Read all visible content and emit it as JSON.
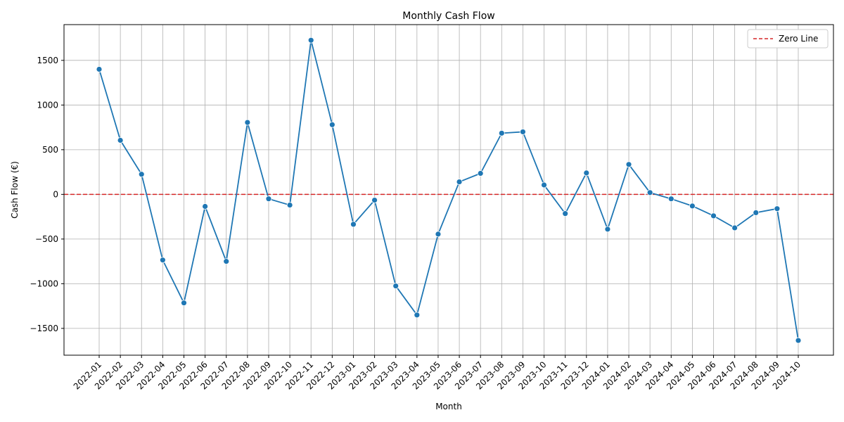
{
  "chart_data": {
    "type": "line",
    "title": "Monthly Cash Flow",
    "xlabel": "Month",
    "ylabel": "Cash Flow (€)",
    "ylim": [
      -1800,
      1900
    ],
    "yticks": [
      -1500,
      -1000,
      -500,
      0,
      500,
      1000,
      1500
    ],
    "ytick_labels": [
      "−1500",
      "−1000",
      "−500",
      "0",
      "500",
      "1000",
      "1500"
    ],
    "grid": true,
    "legend_position": "top-right",
    "categories": [
      "2022-01",
      "2022-02",
      "2022-03",
      "2022-04",
      "2022-05",
      "2022-06",
      "2022-07",
      "2022-08",
      "2022-09",
      "2022-10",
      "2022-11",
      "2022-12",
      "2023-01",
      "2023-02",
      "2023-03",
      "2023-04",
      "2023-05",
      "2023-06",
      "2023-07",
      "2023-08",
      "2023-09",
      "2023-10",
      "2023-11",
      "2023-12",
      "2024-01",
      "2024-02",
      "2024-03",
      "2024-04",
      "2024-05",
      "2024-06",
      "2024-07",
      "2024-08",
      "2024-09",
      "2024-10"
    ],
    "series": [
      {
        "color": "#1f77b4",
        "values": [
          1400,
          605,
          225,
          -735,
          -1215,
          -135,
          -750,
          805,
          -50,
          -120,
          1725,
          780,
          -335,
          -65,
          -1025,
          -1350,
          -445,
          140,
          235,
          685,
          700,
          105,
          -215,
          240,
          -390,
          335,
          20,
          -50,
          -130,
          -240,
          -375,
          -205,
          -160,
          -1635
        ]
      }
    ],
    "reference_line": {
      "name": "Zero Line",
      "value": 0,
      "color": "#d62728",
      "style": "dashed"
    }
  }
}
